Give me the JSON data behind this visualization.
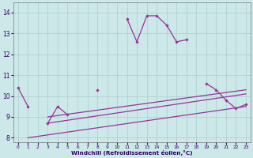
{
  "x": [
    0,
    1,
    2,
    3,
    4,
    5,
    6,
    7,
    8,
    9,
    10,
    11,
    12,
    13,
    14,
    15,
    16,
    17,
    18,
    19,
    20,
    21,
    22,
    23
  ],
  "main_line": [
    10.4,
    9.5,
    null,
    8.7,
    9.5,
    9.1,
    null,
    null,
    10.3,
    null,
    null,
    13.7,
    12.6,
    13.85,
    13.85,
    13.4,
    12.6,
    12.7,
    null,
    10.6,
    10.3,
    9.8,
    9.4,
    9.6
  ],
  "trend1_x": [
    1,
    23
  ],
  "trend1_y": [
    8.0,
    9.5
  ],
  "trend2_x": [
    3,
    23
  ],
  "trend2_y": [
    8.7,
    10.1
  ],
  "trend3_x": [
    3,
    23
  ],
  "trend3_y": [
    9.0,
    10.3
  ],
  "color": "#993399",
  "bg_color": "#cce8e8",
  "grid_color": "#aacccc",
  "xlabel": "Windchill (Refroidissement éolien,°C)",
  "ylim": [
    7.8,
    14.5
  ],
  "xlim": [
    -0.5,
    23.5
  ],
  "yticks": [
    8,
    9,
    10,
    11,
    12,
    13,
    14
  ],
  "xticks": [
    0,
    1,
    2,
    3,
    4,
    5,
    6,
    7,
    8,
    9,
    10,
    11,
    12,
    13,
    14,
    15,
    16,
    17,
    18,
    19,
    20,
    21,
    22,
    23
  ]
}
